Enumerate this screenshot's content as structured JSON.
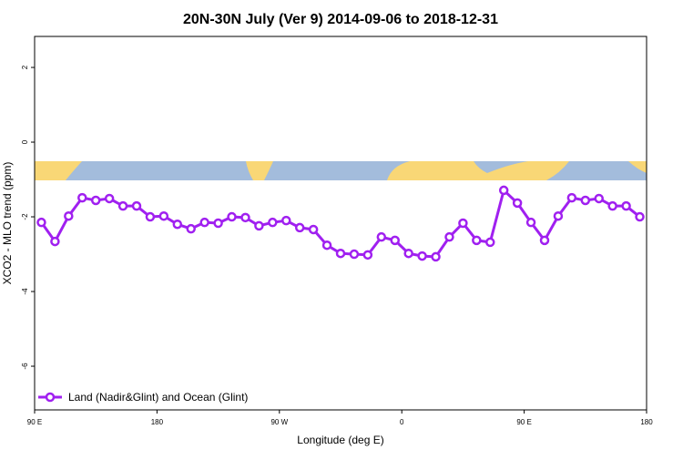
{
  "chart_data": {
    "type": "line",
    "title": "20N-30N July (Ver 9)   2014-09-06 to 2018-12-31",
    "x_label": "Longitude (deg E)",
    "y_label": "XCO2 - MLO trend (ppm)",
    "x": [
      95,
      105,
      115,
      125,
      135,
      145,
      155,
      165,
      175,
      185,
      195,
      205,
      215,
      225,
      235,
      245,
      255,
      265,
      275,
      285,
      295,
      305,
      315,
      325,
      335,
      345,
      355,
      365,
      375,
      385,
      395,
      405,
      415,
      425,
      435,
      445,
      455,
      465,
      475,
      485,
      495,
      505,
      515,
      525,
      535
    ],
    "series": [
      {
        "name": "Land (Nadir&Glint) and Ocean (Glint)",
        "color": "#a020f0",
        "values": [
          -2.15,
          -2.66,
          -1.98,
          -1.49,
          -1.56,
          -1.51,
          -1.71,
          -1.71,
          -2.0,
          -1.98,
          -2.2,
          -2.32,
          -2.15,
          -2.17,
          -2.0,
          -2.02,
          -2.24,
          -2.15,
          -2.1,
          -2.29,
          -2.34,
          -2.76,
          -2.98,
          -3.0,
          -3.02,
          -2.54,
          -2.63,
          -2.98,
          -3.05,
          -3.07,
          -2.54,
          -2.17,
          -2.63,
          -2.68,
          -1.29,
          -1.63,
          -2.15,
          -2.63,
          -1.98,
          -1.49,
          -1.56,
          -1.51,
          -1.71,
          -1.71,
          -2.0
        ]
      }
    ],
    "xlim": [
      90,
      540
    ],
    "xticks": [
      {
        "value": 90,
        "label": "90 E"
      },
      180,
      {
        "value": 270,
        "label": "90 W"
      },
      {
        "value": 360,
        "label": "0"
      },
      {
        "value": 450,
        "label": "90 E"
      },
      {
        "value": 540,
        "label": "180"
      }
    ],
    "ylim": [
      -7.17,
      2.83
    ],
    "yticks": [
      -6,
      -4,
      -2,
      0,
      2
    ],
    "legend": "bottom-left"
  }
}
